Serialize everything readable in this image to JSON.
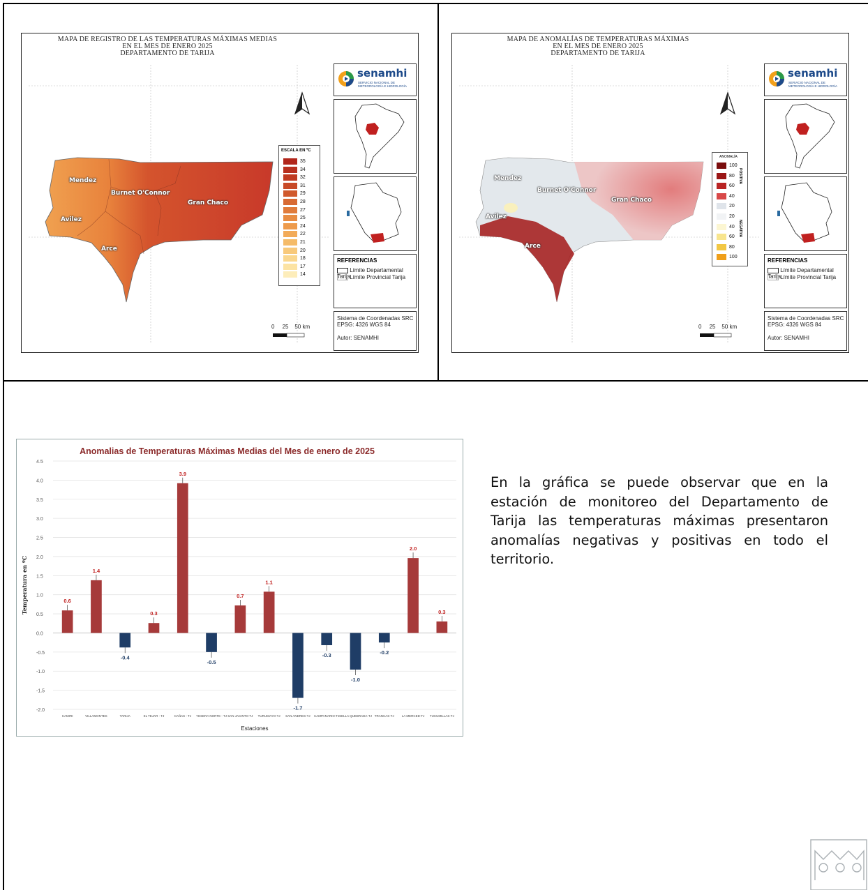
{
  "map_left": {
    "title_lines": [
      "MAPA DE REGISTRO DE LAS TEMPERATURAS MÁXIMAS MEDIAS",
      "EN EL MES DE ENERO 2025",
      "DEPARTAMENTO DE TARIJA"
    ],
    "provinces": [
      "Mendez",
      "Burnet O'Connor",
      "Gran Chaco",
      "Avilez",
      "Arce"
    ],
    "legend_title": "ESCALA EN ºC",
    "legend_values": [
      "35",
      "34",
      "32",
      "31",
      "29",
      "28",
      "27",
      "25",
      "24",
      "22",
      "21",
      "20",
      "18",
      "17",
      "14"
    ],
    "legend_colors": [
      "#b1261b",
      "#b8301f",
      "#c03b22",
      "#c84a28",
      "#d0592c",
      "#d86a33",
      "#e07b3b",
      "#e88c42",
      "#ee9b4c",
      "#f2ab59",
      "#f5bb68",
      "#f8c97a",
      "#fad78e",
      "#fce3a3",
      "#fdedba"
    ],
    "scale_label": "0     25    50 km"
  },
  "map_right": {
    "title_lines": [
      "MAPA DE ANOMALÍAS DE TEMPERATURAS MÁXIMAS",
      "EN EL MES DE ENERO 2025",
      "DEPARTAMENTO DE TARIJA"
    ],
    "provinces": [
      "Mendez",
      "Burnet O'Connor",
      "Gran Chaco",
      "Avilez",
      "Arce"
    ],
    "legend_title": "ANOMALÍA",
    "legend_values": [
      "100",
      "80",
      "60",
      "40",
      "20",
      "20",
      "40",
      "60",
      "80",
      "100"
    ],
    "legend_colors": [
      "#7a0d0d",
      "#9a1616",
      "#b92424",
      "#d84848",
      "#dfe4ea",
      "#f1f3f5",
      "#fcf6d2",
      "#f8e58e",
      "#f2c744",
      "#ef9f1a"
    ],
    "legend_side_labels": [
      "POSITIVA",
      "NEGATIVA"
    ],
    "scale_label": "0     25    50 km"
  },
  "map_common": {
    "brand_name": "senamhi",
    "brand_subtitle": "Servicio Nacional de Meteorología e Hidrología",
    "references_title": "REFERENCIAS",
    "ref_department": "Límite Departamental Tarija",
    "ref_province": "Límite Provincial Tarija",
    "coord_line1": "Sistema de Coordenadas SRC",
    "coord_line2": "EPSG: 4326    WGS 84",
    "author": "Autor: SENAMHI"
  },
  "paragraph": "En la gráfica se puede observar que en la estación de monitoreo del Departamento de Tarija las temperaturas máximas presentaron anomalías negativas y positivas en todo el territorio.",
  "chart_data": {
    "type": "bar",
    "title": "Anomalias de Temperaturas Máximas Medias del Mes de  enero de 2025",
    "xlabel": "Estaciones",
    "ylabel": "Temperatura en ºC",
    "ylim": [
      -2.0,
      4.5
    ],
    "yticks": [
      "4.5",
      "4.0",
      "3.5",
      "3.0",
      "2.5",
      "2.0",
      "1.5",
      "1.0",
      "0.5",
      "0.0",
      "-0.5",
      "-1.0",
      "-1.5",
      "-2.0"
    ],
    "categories": [
      "CAMIRI",
      "VILLAMONTES",
      "TARIJA",
      "EL TEJAR - TJ",
      "CAÑAS - TJ",
      "YESERA NORTE - TJ",
      "SAN JACINTO-TJ",
      "TURUMAYO-TJ",
      "SAN ANDRES-TJ",
      "CAMPANARIO-TJ",
      "SELLA QUEBRADA-TJ",
      "TRANCAS-TJ",
      "LA MERCED-TJ",
      "TUCUMILLAS-TJ"
    ],
    "values": [
      0.59,
      1.38,
      -0.38,
      0.26,
      3.92,
      -0.5,
      0.72,
      1.08,
      -1.7,
      -0.32,
      -0.96,
      -0.25,
      1.96,
      0.3
    ],
    "data_labels": [
      "0.6",
      "1.4",
      "-0.4",
      "0.3",
      "3.9",
      "-0.5",
      "0.7",
      "1.1",
      "-1.7",
      "-0.3",
      "-1.0",
      "-0.2",
      "2.0",
      "0.3"
    ],
    "colors": {
      "positive": "#a63a3a",
      "negative": "#1f3d66",
      "positive_label": "#c0201f",
      "negative_label": "#1f3d66",
      "title": "#8b2a2a"
    },
    "grid": true
  }
}
